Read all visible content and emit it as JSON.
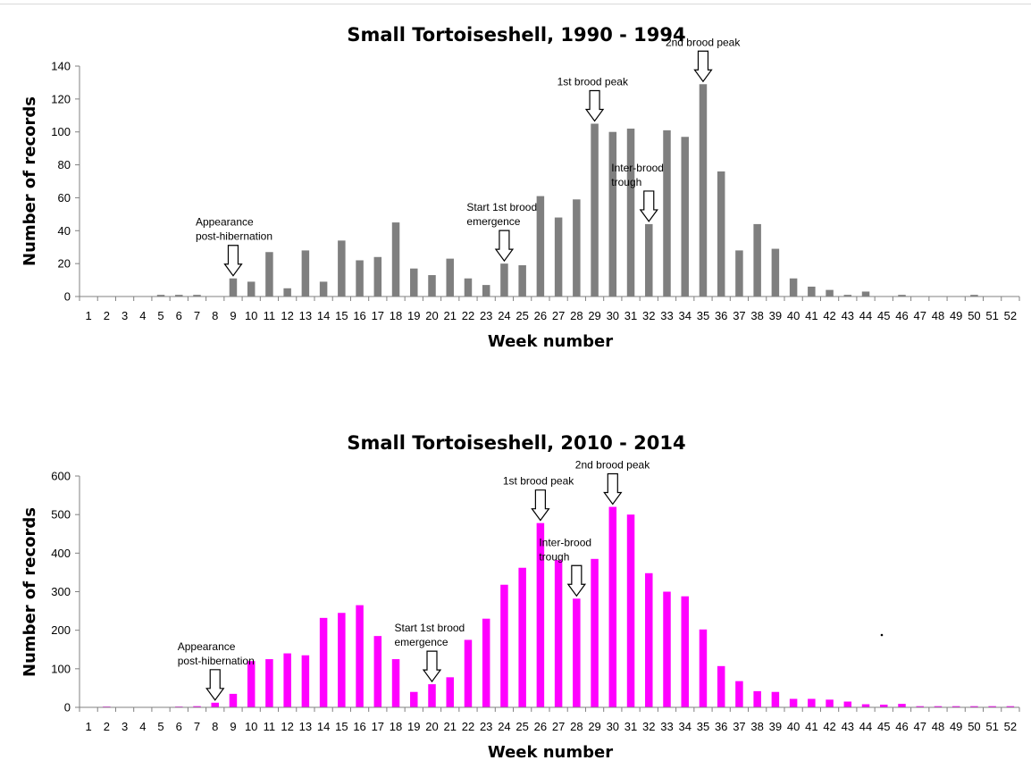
{
  "chart_data": [
    {
      "type": "bar",
      "title": "Small Tortoiseshell, 1990 - 1994",
      "xlabel": "Week number",
      "ylabel": "Number of records",
      "ylim": [
        0,
        140
      ],
      "yticks": [
        0,
        20,
        40,
        60,
        80,
        100,
        120,
        140
      ],
      "color": "#7f7f7f",
      "categories": [
        "1",
        "2",
        "3",
        "4",
        "5",
        "6",
        "7",
        "8",
        "9",
        "10",
        "11",
        "12",
        "13",
        "14",
        "15",
        "16",
        "17",
        "18",
        "19",
        "20",
        "21",
        "22",
        "23",
        "24",
        "25",
        "26",
        "27",
        "28",
        "29",
        "30",
        "31",
        "32",
        "33",
        "34",
        "35",
        "36",
        "37",
        "38",
        "39",
        "40",
        "41",
        "42",
        "43",
        "44",
        "45",
        "46",
        "47",
        "48",
        "49",
        "50",
        "51",
        "52"
      ],
      "values": [
        0,
        0,
        0,
        0,
        1,
        1,
        1,
        0,
        11,
        9,
        27,
        5,
        28,
        9,
        34,
        22,
        24,
        45,
        17,
        13,
        23,
        11,
        7,
        20,
        19,
        61,
        48,
        59,
        105,
        100,
        102,
        44,
        101,
        97,
        129,
        76,
        28,
        44,
        29,
        11,
        6,
        4,
        1,
        3,
        0,
        1,
        0,
        0,
        0,
        1,
        0,
        0
      ],
      "annotations": [
        {
          "lines": [
            "Appearance",
            "post-hibernation"
          ],
          "week": 9
        },
        {
          "lines": [
            "Start 1st brood",
            "emergence"
          ],
          "week": 24
        },
        {
          "lines": [
            "1st brood peak"
          ],
          "week": 29
        },
        {
          "lines": [
            "Inter-brood",
            "trough"
          ],
          "week": 32
        },
        {
          "lines": [
            "2nd brood peak"
          ],
          "week": 35
        }
      ]
    },
    {
      "type": "bar",
      "title": "Small Tortoiseshell, 2010 - 2014",
      "xlabel": "Week number",
      "ylabel": "Number of records",
      "ylim": [
        0,
        600
      ],
      "yticks": [
        0,
        100,
        200,
        300,
        400,
        500,
        600
      ],
      "color": "#ff00ff",
      "categories": [
        "1",
        "2",
        "3",
        "4",
        "5",
        "6",
        "7",
        "8",
        "9",
        "10",
        "11",
        "12",
        "13",
        "14",
        "15",
        "16",
        "17",
        "18",
        "19",
        "20",
        "21",
        "22",
        "23",
        "24",
        "25",
        "26",
        "27",
        "28",
        "29",
        "30",
        "31",
        "32",
        "33",
        "34",
        "35",
        "36",
        "37",
        "38",
        "39",
        "40",
        "41",
        "42",
        "43",
        "44",
        "45",
        "46",
        "47",
        "48",
        "49",
        "50",
        "51",
        "52"
      ],
      "values": [
        0,
        2,
        0,
        0,
        0,
        2,
        3,
        12,
        35,
        120,
        125,
        140,
        135,
        232,
        245,
        265,
        185,
        125,
        40,
        60,
        78,
        175,
        230,
        318,
        362,
        478,
        382,
        282,
        385,
        520,
        500,
        348,
        300,
        288,
        202,
        107,
        68,
        42,
        40,
        22,
        22,
        20,
        15,
        8,
        7,
        9,
        3,
        3,
        3,
        3,
        3,
        3
      ],
      "annotations": [
        {
          "lines": [
            "Appearance",
            "post-hibernation"
          ],
          "week": 8
        },
        {
          "lines": [
            "Start 1st brood",
            "emergence"
          ],
          "week": 20
        },
        {
          "lines": [
            "1st brood peak"
          ],
          "week": 26
        },
        {
          "lines": [
            "Inter-brood",
            "trough"
          ],
          "week": 28
        },
        {
          "lines": [
            "2nd brood peak"
          ],
          "week": 30
        }
      ]
    }
  ]
}
